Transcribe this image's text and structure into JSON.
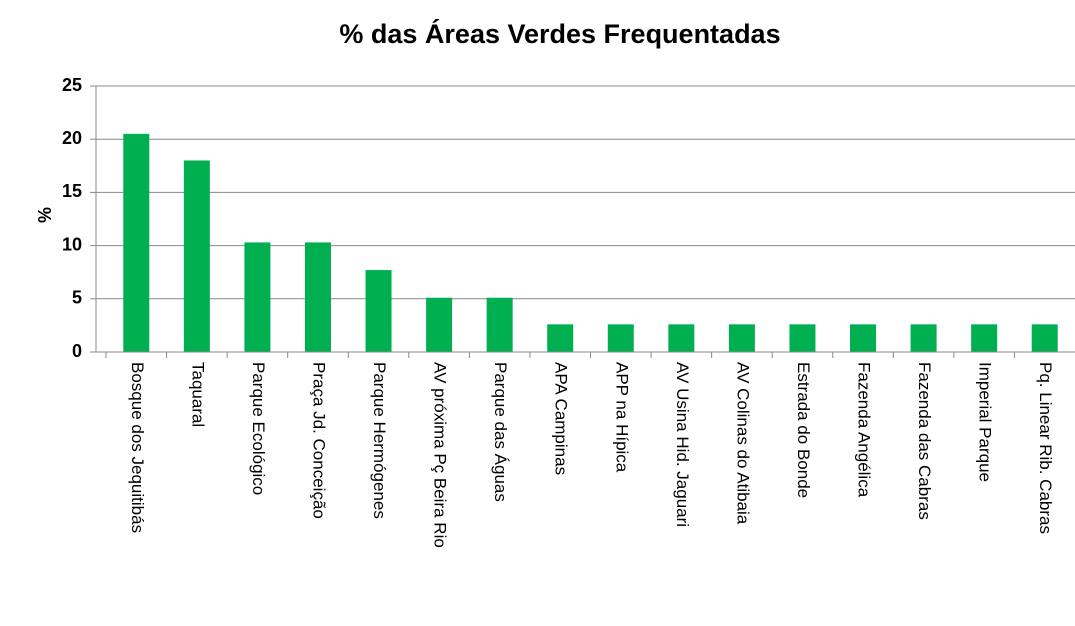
{
  "chart_data": {
    "type": "bar",
    "title": "% das Áreas Verdes Frequentadas",
    "y_label": "%",
    "categories": [
      "Bosque dos Jequitibás",
      "Taquaral",
      "Parque Ecológico",
      "Praça Jd. Conceição",
      "Parque Hermógenes",
      "AV próxima Pç Beira Rio",
      "Parque das Águas",
      "APA Campinas",
      "APP na Hípica",
      "AV Usina Hid. Jaguari",
      "AV Colinas do Atibaia",
      "Estrada do Bonde",
      "Fazenda Angélica",
      "Fazenda das Cabras",
      "Imperial Parque",
      "Pq. Linear Rib. Cabras"
    ],
    "values": [
      20.5,
      18,
      10.3,
      10.3,
      7.7,
      5.1,
      5.1,
      2.6,
      2.6,
      2.6,
      2.6,
      2.6,
      2.6,
      2.6,
      2.6,
      2.6
    ],
    "color": "#00b050",
    "ylim": [
      0,
      25
    ],
    "yticks": [
      0,
      5,
      10,
      15,
      20,
      25
    ],
    "grid": true
  }
}
